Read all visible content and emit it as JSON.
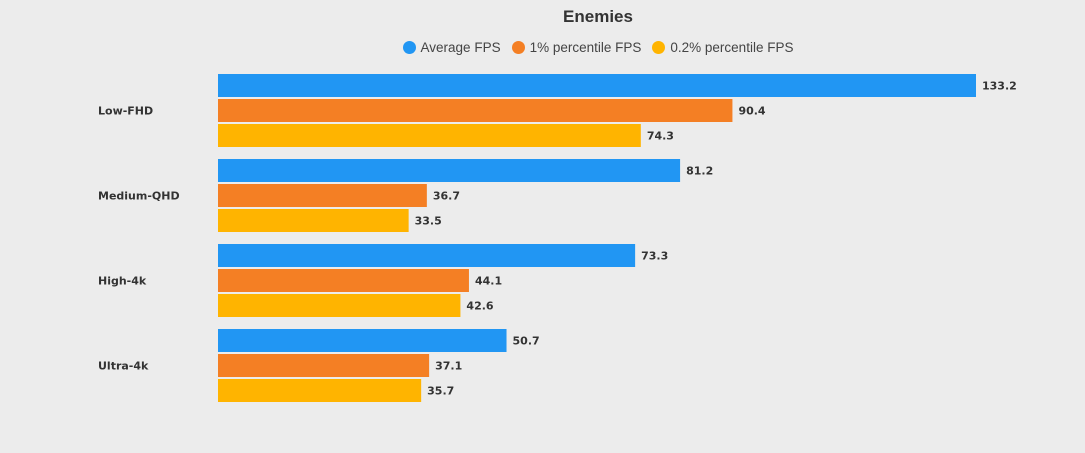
{
  "chart_data": {
    "type": "bar",
    "orientation": "horizontal",
    "title": "Enemies",
    "categories": [
      "Low-FHD",
      "Medium-QHD",
      "High-4k",
      "Ultra-4k"
    ],
    "series": [
      {
        "name": "Average FPS",
        "color": "#2196f3",
        "values": [
          133.2,
          81.2,
          73.3,
          50.7
        ]
      },
      {
        "name": "1% percentile FPS",
        "color": "#f47f24",
        "values": [
          90.4,
          36.7,
          44.1,
          37.1
        ]
      },
      {
        "name": "0.2% percentile FPS",
        "color": "#ffb400",
        "values": [
          74.3,
          33.5,
          42.6,
          35.7
        ]
      }
    ],
    "xlim": [
      0,
      133.2
    ],
    "grid": false,
    "legend": "top-center",
    "xlabel": "",
    "ylabel": ""
  }
}
